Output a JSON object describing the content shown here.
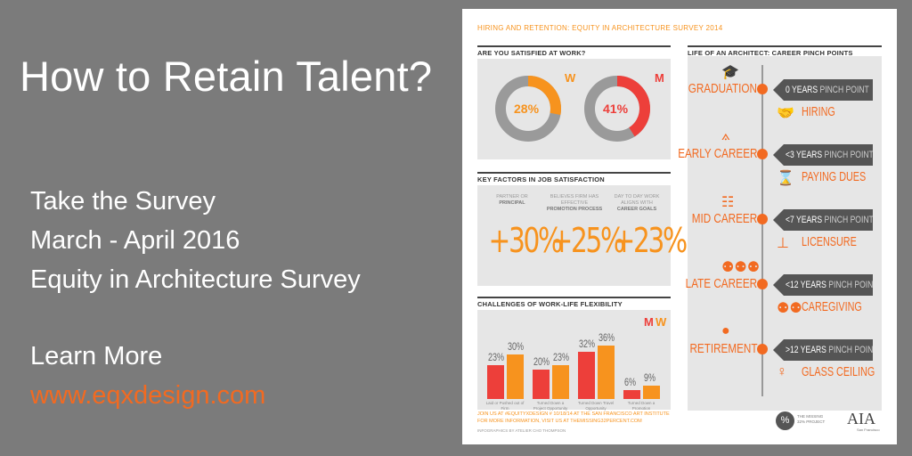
{
  "left": {
    "title": "How to Retain Talent?",
    "lines": [
      "Take the Survey",
      "March - April 2016",
      "Equity in Architecture Survey"
    ],
    "learn_more": "Learn More",
    "url": "www.eqxdesign.com"
  },
  "card": {
    "title": "HIRING AND RETENTION: EQUITY IN ARCHITECTURE SURVEY 2014",
    "satisfied": {
      "header": "ARE YOU SATISFIED AT WORK?",
      "women": {
        "pct_label": "28%",
        "letter": "W",
        "fraction": 0.28,
        "color": "#f7931e"
      },
      "men": {
        "pct_label": "41%",
        "letter": "M",
        "fraction": 0.41,
        "color": "#ed3f3a"
      }
    },
    "key_factors": {
      "header": "KEY FACTORS IN JOB SATISFACTION",
      "items": [
        {
          "cap_top": "PARTNER OR",
          "cap_bold": "PRINCIPAL",
          "value": "+30%"
        },
        {
          "cap_top": "BELIEVES FIRM HAS EFFECTIVE",
          "cap_bold": "PROMOTION PROCESS",
          "value": "+25%"
        },
        {
          "cap_top": "DAY TO DAY WORK ALIGNS WITH",
          "cap_bold": "CAREER GOALS",
          "value": "+23%"
        }
      ]
    },
    "challenges": {
      "header": "CHALLENGES OF WORK-LIFE FLEXIBILITY",
      "legend_m": "M",
      "legend_w": "W",
      "colors": {
        "m": "#ed3f3a",
        "w": "#f7931e"
      },
      "groups": [
        {
          "m_label": "23%",
          "w_label": "30%",
          "m": 23,
          "w": 30,
          "caption": "Laid or Pushed out of Firm"
        },
        {
          "m_label": "20%",
          "w_label": "23%",
          "m": 20,
          "w": 23,
          "caption": "Turned Down a Project Opportunity"
        },
        {
          "m_label": "32%",
          "w_label": "36%",
          "m": 32,
          "w": 36,
          "caption": "Turned Down Travel Opportunity"
        },
        {
          "m_label": "6%",
          "w_label": "9%",
          "m": 6,
          "w": 9,
          "caption": "Turned Down a Promotion"
        }
      ]
    },
    "career": {
      "header": "LIFE OF AN ARCHITECT: CAREER PINCH POINTS",
      "stages": [
        {
          "stage": "GRADUATION",
          "years": "0 YEARS",
          "pinch": "PINCH POINT",
          "sub": "HIRING",
          "stage_icon": "graduation-cap-icon",
          "sub_icon": "handshake-icon"
        },
        {
          "stage": "EARLY CAREER",
          "years": "<3 YEARS",
          "pinch": "PINCH POINT",
          "sub": "PAYING DUES",
          "stage_icon": "compass-icon",
          "sub_icon": "hourglass-icon"
        },
        {
          "stage": "MID CAREER",
          "years": "<7 YEARS",
          "pinch": "PINCH POINT",
          "sub": "LICENSURE",
          "stage_icon": "ladder-icon",
          "sub_icon": "stamp-icon"
        },
        {
          "stage": "LATE CAREER",
          "years": "<12 YEARS",
          "pinch": "PINCH POINT",
          "sub": "CAREGIVING",
          "stage_icon": "people-icon",
          "sub_icon": "family-icon"
        },
        {
          "stage": "RETIREMENT",
          "years": ">12 YEARS",
          "pinch": "PINCH POINT",
          "sub": "GLASS CEILING",
          "stage_icon": "piggy-bank-icon",
          "sub_icon": "woman-icon"
        }
      ]
    },
    "footer": {
      "line1": "JOIN US AT #EQUITYXDESIGN # 10/18/14 AT THE SAN FRANCISCO ART INSTITUTE",
      "line2": "FOR MORE INFORMATION, VISIT US AT THEMISSING32PERCENT.COM",
      "credit": "INFOGRAPHICS BY ATELIER CHO THOMPSON",
      "logo1_symbol": "%",
      "logo1_text_1": "THE MISSING",
      "logo1_text_2": "32% PROJECT",
      "logo2": "AIA",
      "logo2_sub": "San Francisco"
    }
  }
}
